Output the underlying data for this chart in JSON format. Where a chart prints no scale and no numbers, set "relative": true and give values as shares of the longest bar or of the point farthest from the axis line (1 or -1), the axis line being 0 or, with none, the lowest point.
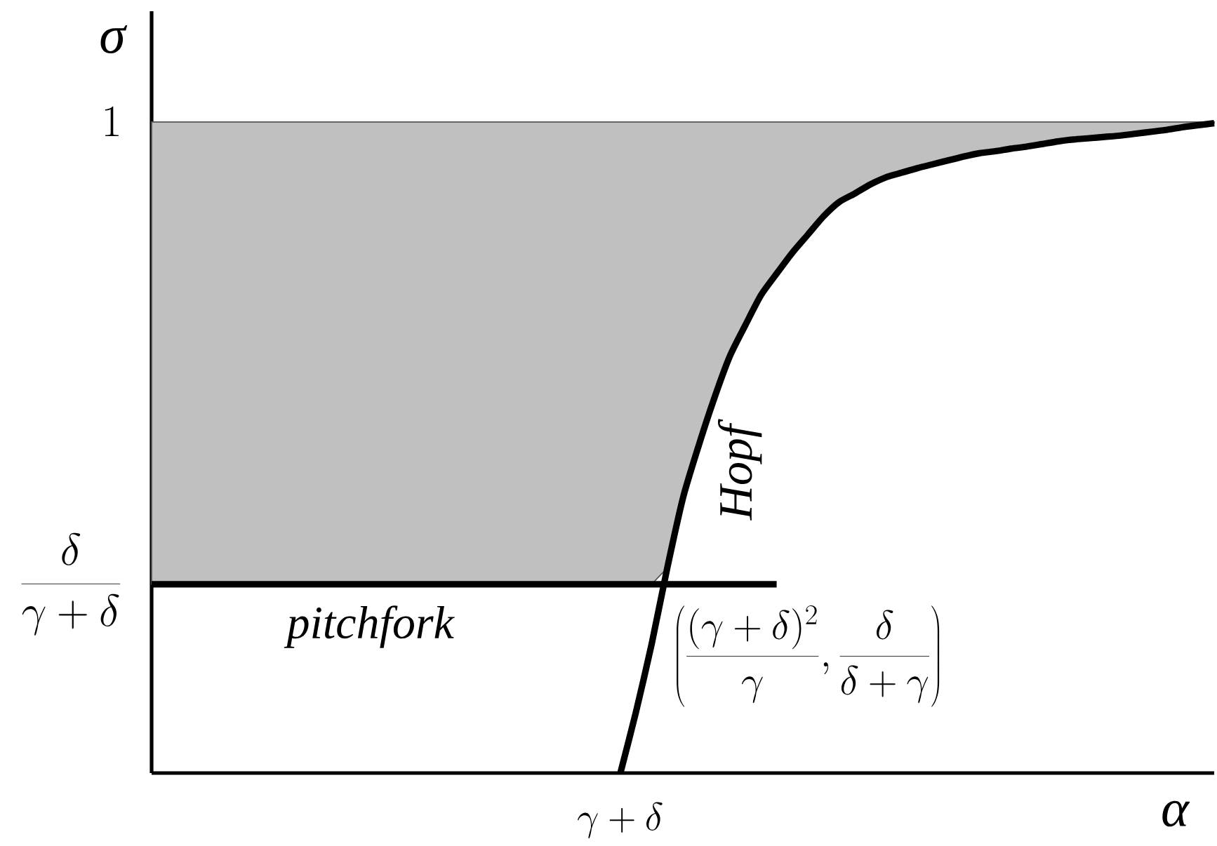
{
  "chart_data": {
    "type": "line",
    "relative": true,
    "xlabel": "α",
    "ylabel": "σ",
    "categories": [
      null,
      null,
      null,
      null,
      null,
      null,
      null,
      null,
      null,
      null,
      null,
      null,
      null,
      null,
      null,
      null,
      null,
      null,
      null,
      null,
      null,
      null,
      null,
      null,
      null,
      null,
      null,
      null,
      null,
      null,
      null,
      null,
      null,
      null,
      null,
      null,
      null,
      null,
      null,
      null,
      null,
      null,
      null,
      null,
      null,
      null,
      null,
      null,
      null,
      null,
      null,
      null,
      null,
      null,
      null,
      null,
      null,
      null,
      null,
      null,
      null,
      null,
      null,
      null,
      null,
      null,
      null,
      null,
      null
    ],
    "series": [
      {
        "type": "area",
        "color": "#c0c0c0",
        "values": [
          1,
          1,
          1,
          1,
          1,
          1,
          1,
          1,
          1,
          1,
          1,
          1,
          1,
          1,
          1,
          1,
          1,
          1,
          1,
          1,
          1,
          1,
          1,
          1,
          1,
          1,
          1,
          1,
          1,
          1,
          1,
          1,
          1,
          1,
          1,
          1,
          1,
          1,
          1,
          1,
          1,
          1,
          1,
          1,
          1,
          1,
          1,
          1,
          1,
          1,
          1,
          1,
          1,
          1,
          1,
          1,
          1,
          1,
          1,
          1,
          1,
          1,
          1,
          1,
          1,
          1,
          1,
          1,
          1
        ]
      },
      {
        "name": "Hopf",
        "color": "#000000",
        "values": [
          null,
          null,
          null,
          null,
          null,
          null,
          null,
          null,
          null,
          null,
          null,
          null,
          null,
          null,
          null,
          null,
          null,
          null,
          null,
          null,
          null,
          null,
          null,
          null,
          null,
          null,
          null,
          null,
          null,
          null,
          0,
          0.094,
          0.198,
          0.315,
          0.422,
          0.502,
          0.575,
          0.64,
          0.688,
          0.734,
          0.767,
          0.799,
          0.827,
          0.855,
          0.877,
          0.89,
          0.904,
          0.915,
          0.922,
          0.929,
          0.935,
          0.941,
          0.947,
          0.952,
          0.955,
          0.959,
          0.962,
          0.966,
          0.97,
          0.973,
          0.975,
          0.977,
          0.979,
          0.982,
          0.985,
          0.988,
          0.992,
          0.995,
          0.998
        ]
      },
      {
        "name": "pitchfork",
        "color": "#000000",
        "values": [
          0.29,
          0.29,
          0.29,
          0.29,
          0.29,
          0.29,
          0.29,
          0.29,
          0.29,
          0.29,
          0.29,
          0.29,
          0.29,
          0.29,
          0.29,
          0.29,
          0.29,
          0.29,
          0.29,
          0.29,
          0.29,
          0.29,
          0.29,
          0.29,
          0.29,
          0.29,
          0.29,
          0.29,
          0.29,
          0.29,
          0.29,
          0.29,
          0.29,
          0.29,
          0.29,
          0.29,
          0.29,
          0.29,
          0.29,
          0.29,
          0.29,
          null,
          null,
          null,
          null,
          null,
          null,
          null,
          null,
          null,
          null,
          null,
          null,
          null,
          null,
          null,
          null,
          null,
          null,
          null,
          null,
          null,
          null,
          null,
          null,
          null,
          null,
          null,
          null
        ]
      }
    ],
    "annotations": [
      "1",
      "\\frac{\\delta}{\\gamma+\\delta}",
      "\\gamma+\\delta",
      "\\left(\\frac{(\\gamma+\\delta)^2}{\\gamma},\\frac{\\delta}{\\delta+\\gamma}\\right)"
    ]
  }
}
